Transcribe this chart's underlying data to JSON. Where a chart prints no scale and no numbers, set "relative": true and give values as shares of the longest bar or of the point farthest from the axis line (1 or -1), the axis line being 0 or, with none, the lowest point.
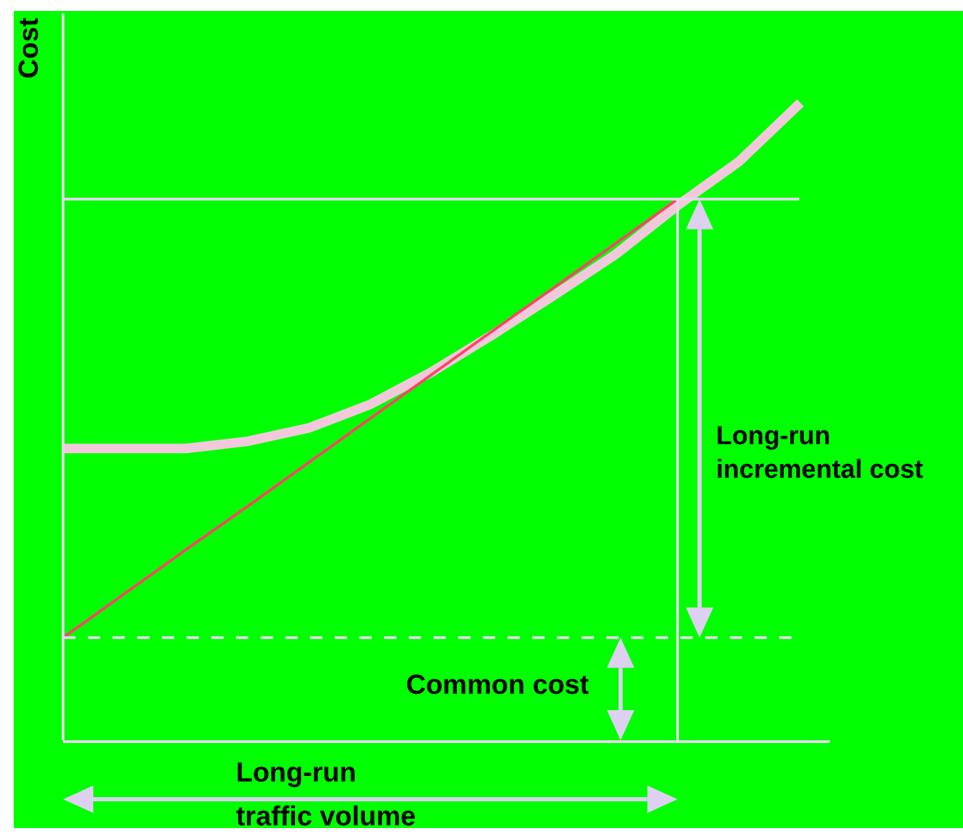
{
  "chart_data": {
    "type": "line",
    "relative": true,
    "ylabel": "Cost",
    "xlabel": "Long-run\ntraffic volume",
    "marker": "none",
    "categories": [
      null,
      null,
      null,
      null,
      null,
      null,
      null,
      null,
      null,
      null,
      null,
      null,
      null
    ],
    "series": [
      {
        "color": "#f2c8dc",
        "values": [
          0.458,
          0.458,
          0.458,
          0.469,
          0.49,
          0.527,
          0.578,
          0.637,
          0.699,
          0.763,
          0.839,
          0.908,
          1
        ]
      },
      {
        "color": "#ff4466",
        "values": [
          0.161,
          0.23,
          0.299,
          0.367,
          0.436,
          0.505,
          0.574,
          0.643,
          0.711,
          0.78,
          0.849,
          null,
          null
        ]
      }
    ],
    "ref_lines": [
      {
        "axis": "y",
        "value": 0.161,
        "line_style": "dashed",
        "color": "#e6d8ec"
      },
      {
        "axis": "y",
        "value": 0.849,
        "color": "#e6d8ec"
      }
    ],
    "annotations": [
      "Long-run\nincremental cost",
      "Common cost"
    ]
  }
}
